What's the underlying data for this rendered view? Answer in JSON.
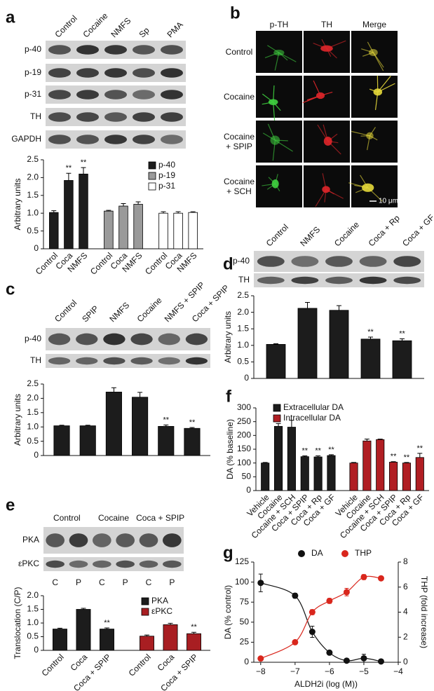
{
  "figure_b": {
    "panel": "b",
    "columns": [
      "p-TH",
      "TH",
      "Merge"
    ],
    "rows": [
      "Control",
      "Cocaine",
      "Cocaine + SPIP",
      "Cocaine + SCH"
    ],
    "scale_bar": "10 μm"
  },
  "chart_data": [
    {
      "type": "bar",
      "panel": "a",
      "blot_lanes": [
        "Control",
        "Cocaine",
        "NMFS",
        "Sp",
        "PMA"
      ],
      "blot_rows": [
        "p-40",
        "p-19",
        "p-31",
        "TH",
        "GAPDH"
      ],
      "ylabel": "Arbitrary units",
      "ylim": [
        0,
        2.5
      ],
      "yticks": [
        0,
        0.5,
        {
          "value": 1,
          "label": "1.0"
        },
        1.5,
        {
          "value": 2,
          "label": "2.0"
        },
        2.5
      ],
      "series": [
        {
          "name": "p-40",
          "color": "#1c1c1c",
          "categories": [
            "Control",
            "Coca",
            "NMFS"
          ],
          "values": [
            1.02,
            1.92,
            2.1
          ],
          "errors": [
            0.05,
            0.2,
            0.18
          ],
          "marks": [
            null,
            "**",
            "**"
          ]
        },
        {
          "name": "p-19",
          "color": "#9a9a9a",
          "categories": [
            "Control",
            "Coca",
            "NMFS"
          ],
          "values": [
            1.06,
            1.2,
            1.25
          ],
          "errors": [
            0.02,
            0.07,
            0.07
          ]
        },
        {
          "name": "p-31",
          "color": "#ffffff",
          "categories": [
            "Control",
            "Coca",
            "NMFS"
          ],
          "values": [
            1.0,
            1.0,
            1.02
          ],
          "errors": [
            0.04,
            0.04,
            0.02
          ]
        }
      ]
    },
    {
      "type": "bar",
      "panel": "c",
      "categories": [
        "Control",
        "SPIP",
        "NMFS",
        "Cocaine",
        "NMFS + SPIP",
        "Coca + SPIP"
      ],
      "blot_rows": [
        "p-40",
        "TH"
      ],
      "values": [
        1.04,
        1.04,
        2.22,
        2.04,
        1.02,
        0.95
      ],
      "errors": [
        0.02,
        0.02,
        0.15,
        0.17,
        0.05,
        0.03
      ],
      "marks": [
        null,
        null,
        null,
        null,
        "**",
        "**"
      ],
      "color": "#1c1c1c",
      "ylabel": "Arbitrary units",
      "ylim": [
        0,
        2.5
      ],
      "yticks": [
        0,
        0.5,
        {
          "value": 1,
          "label": "1.0"
        },
        1.5,
        {
          "value": 2,
          "label": "2.0"
        },
        2.5
      ]
    },
    {
      "type": "bar",
      "panel": "d",
      "categories": [
        "Control",
        "NMFS",
        "Cocaine",
        "Coca + Rp",
        "Coca + GF"
      ],
      "blot_rows": [
        "p-40",
        "TH"
      ],
      "values": [
        1.03,
        2.12,
        2.06,
        1.19,
        1.14
      ],
      "errors": [
        0.02,
        0.18,
        0.14,
        0.06,
        0.06
      ],
      "marks": [
        null,
        null,
        null,
        "**",
        "**"
      ],
      "color": "#1c1c1c",
      "ylabel": "Arbitrary units",
      "ylim": [
        0,
        2.5
      ],
      "yticks": [
        0,
        0.5,
        {
          "value": 1,
          "label": "1.0"
        },
        1.5,
        {
          "value": 2,
          "label": "2.0"
        },
        2.5
      ]
    },
    {
      "type": "bar",
      "panel": "e",
      "blot_lanes": [
        "Control",
        "Cocaine",
        "Coca + SPIP"
      ],
      "blot_sublanes": [
        "C",
        "P",
        "C",
        "P",
        "C",
        "P"
      ],
      "blot_rows": [
        "PKA",
        "εPKC"
      ],
      "ylabel": "Translocation (C/P)",
      "ylim": [
        0,
        2
      ],
      "yticks": [
        0,
        0.5,
        {
          "value": 1,
          "label": "1.0"
        },
        1.5,
        {
          "value": 2,
          "label": "2.0"
        }
      ],
      "series": [
        {
          "name": "PKA",
          "color": "#1c1c1c",
          "categories": [
            "Control",
            "Coca",
            "Coca + SPIP"
          ],
          "values": [
            0.78,
            1.5,
            0.78
          ],
          "errors": [
            0.03,
            0.04,
            0.04
          ],
          "marks": [
            null,
            null,
            "**"
          ]
        },
        {
          "name": "εPKC",
          "color": "#a81e22",
          "categories": [
            "Control",
            "Coca",
            "Coca + SPIP"
          ],
          "values": [
            0.52,
            0.94,
            0.61
          ],
          "errors": [
            0.04,
            0.05,
            0.05
          ],
          "marks": [
            null,
            null,
            "**"
          ]
        }
      ]
    },
    {
      "type": "bar",
      "panel": "f",
      "ylabel": "DA (% baseline)",
      "ylim": [
        0,
        300
      ],
      "yticks": [
        0,
        50,
        100,
        150,
        200,
        250,
        300
      ],
      "series": [
        {
          "name": "Extracellular DA",
          "color": "#1c1c1c",
          "categories": [
            "Vehicle",
            "Cocaine",
            "Cocaine + SCH",
            "Coca + SPIP",
            "Coca + Rp",
            "Coca + GF"
          ],
          "values": [
            100,
            233,
            230,
            123,
            122,
            127
          ],
          "errors": [
            2,
            10,
            25,
            3,
            4,
            3
          ],
          "marks": [
            null,
            null,
            null,
            "**",
            "**",
            "**"
          ]
        },
        {
          "name": "Intracellular DA",
          "color": "#b01e23",
          "categories": [
            "Vehicle",
            "Cocaine",
            "Cocaine + SCH",
            "Coca + SPIP",
            "Coca + Rp",
            "Coca + GF"
          ],
          "values": [
            100,
            180,
            185,
            103,
            100,
            120
          ],
          "errors": [
            2,
            7,
            2,
            2,
            2,
            15
          ],
          "marks": [
            null,
            null,
            null,
            "**",
            "**",
            "**"
          ]
        }
      ]
    },
    {
      "type": "scatter",
      "panel": "g",
      "xlabel": "ALDH2i (log (M))",
      "ylabel": "DA (% control)",
      "y2label": "THP (fold increase)",
      "x": [
        -8,
        -7,
        -6.5,
        -6,
        -5.5,
        -5,
        -4.5
      ],
      "xlim": [
        -8.2,
        -4
      ],
      "xticks": [
        {
          "value": -8,
          "label": "−8"
        },
        {
          "value": -7,
          "label": "−7"
        },
        {
          "value": -6,
          "label": "−6"
        },
        {
          "value": -5,
          "label": "−5"
        },
        {
          "value": -4,
          "label": "−4"
        }
      ],
      "ylim": [
        0,
        125
      ],
      "yticks": [
        0,
        25,
        50,
        75,
        100,
        125
      ],
      "y2lim": [
        0,
        8
      ],
      "y2ticks": [
        0,
        2,
        4,
        6,
        8
      ],
      "series": [
        {
          "name": "DA",
          "color": "#111111",
          "values": [
            99,
            83,
            38,
            12,
            2,
            5,
            1
          ],
          "errors": [
            11,
            3,
            7,
            2,
            2,
            5,
            1
          ]
        },
        {
          "name": "THP",
          "color": "#d9261c",
          "axis": "y2",
          "values": [
            0.3,
            1.6,
            4.0,
            4.9,
            5.6,
            6.8,
            6.7
          ],
          "errors": [
            0.1,
            0.1,
            0.2,
            0.2,
            0.3,
            0.2,
            0.1
          ]
        }
      ]
    }
  ]
}
